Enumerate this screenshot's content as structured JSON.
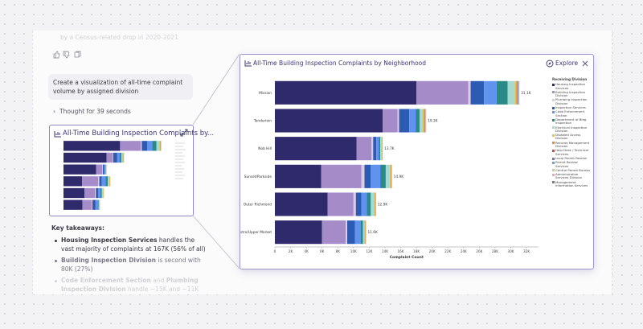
{
  "faded_text": "by a Census-related drop in 2020-2021",
  "user_message": "Create a visualization of all-time complaint volume by assigned division",
  "thought": "Thought for 39 seconds",
  "thumbnail_title": "All-Time Building Inspection Complaints by...",
  "takeaways_heading": "Key takeaways:",
  "takeaways": [
    [
      "Housing Inspection Services",
      "handles the vast majority of complaints at 167K (56% of all)"
    ],
    [
      "Building Inspection Division",
      "is second with 80K (27%)"
    ],
    [
      "Code Enforcement Section",
      "and",
      "Plumbing Inspection Division",
      "handle ~15K and ~11K"
    ]
  ],
  "explore": "Explore",
  "chart_data": {
    "type": "stacked_bar_horizontal",
    "title": "All-Time Building Inspection Complaints by Neighborhood",
    "xlabel": "Complaint Count",
    "legend_title": "Receiving Division",
    "legend": "right",
    "grid": false,
    "categories": [
      "Mission",
      "Tenderloin",
      "Nob Hill",
      "Sunset/Parkside",
      "Outer Richmond",
      "Castro/Upper Market"
    ],
    "totals": [
      31090,
      19230,
      13710,
      14890,
      12860,
      11600
    ],
    "total_labels": [
      "31.1K",
      "19.2K",
      "13.7K",
      "14.9K",
      "12.9K",
      "11.6K"
    ],
    "xlim": [
      0,
      33500
    ],
    "xticks": [
      0,
      {
        "value": 2000,
        "label": "2K"
      },
      {
        "value": 4000,
        "label": "4K"
      },
      {
        "value": 6000,
        "label": "6K"
      },
      {
        "value": 8000,
        "label": "8K"
      },
      {
        "value": 10000,
        "label": "10K"
      },
      {
        "value": 12000,
        "label": "12K"
      },
      {
        "value": 14000,
        "label": "14K"
      },
      {
        "value": 16000,
        "label": "16K"
      },
      {
        "value": 18000,
        "label": "18K"
      },
      {
        "value": 20000,
        "label": "20K"
      },
      {
        "value": 22000,
        "label": "22K"
      },
      {
        "value": 24000,
        "label": "24K"
      },
      {
        "value": 26000,
        "label": "26K"
      },
      {
        "value": 28000,
        "label": "28K"
      },
      {
        "value": 30000,
        "label": "30K"
      },
      {
        "value": 32000,
        "label": "32K"
      }
    ],
    "series": [
      {
        "name": "Housing Inspection Services",
        "color": "#2f2a6b",
        "values": [
          18000,
          13700,
          10400,
          5900,
          6700,
          6000
        ]
      },
      {
        "name": "Building Inspection Division",
        "color": "#a58cc8",
        "values": [
          6600,
          1900,
          1900,
          5100,
          3300,
          3000
        ]
      },
      {
        "name": "Plumbing Inspection Division",
        "color": "#d8cceb",
        "values": [
          300,
          200,
          200,
          400,
          300,
          200
        ]
      },
      {
        "name": "Inspection Services",
        "color": "#2c5bb3",
        "values": [
          1700,
          1300,
          400,
          800,
          700,
          1000
        ]
      },
      {
        "name": "Code Enforcement Section",
        "color": "#5f93ee",
        "values": [
          1600,
          800,
          300,
          1200,
          700,
          700
        ]
      },
      {
        "name": "Department of Bldg Inspection",
        "color": "#2b8a86",
        "values": [
          1400,
          500,
          200,
          700,
          500,
          300
        ]
      },
      {
        "name": "Electrical Inspection Division",
        "color": "#a7d9cf",
        "values": [
          900,
          400,
          150,
          500,
          400,
          200
        ]
      },
      {
        "name": "Disabled Access Division",
        "color": "#e6c347",
        "values": [
          200,
          150,
          60,
          150,
          120,
          80
        ]
      },
      {
        "name": "Records Management Division",
        "color": "#e08a3c",
        "values": [
          150,
          100,
          40,
          80,
          80,
          60
        ]
      },
      {
        "name": "Help Desk / Technical Services",
        "color": "#c0504d",
        "values": [
          40,
          30,
          10,
          10,
          10,
          10
        ]
      },
      {
        "name": "Local Permit Review",
        "color": "#8e6bb0",
        "values": [
          40,
          30,
          10,
          10,
          10,
          10
        ]
      },
      {
        "name": "Permit Review Services",
        "color": "#6a9fd8",
        "values": [
          40,
          30,
          10,
          10,
          10,
          10
        ]
      },
      {
        "name": "Central Permit Bureau",
        "color": "#b4d68a",
        "values": [
          40,
          30,
          10,
          10,
          10,
          10
        ]
      },
      {
        "name": "Administrative Services Division",
        "color": "#f2a2b4",
        "values": [
          40,
          30,
          10,
          10,
          10,
          10
        ]
      },
      {
        "name": "Management Information Services",
        "color": "#7c7c7c",
        "values": [
          40,
          30,
          10,
          10,
          10,
          10
        ]
      }
    ]
  }
}
